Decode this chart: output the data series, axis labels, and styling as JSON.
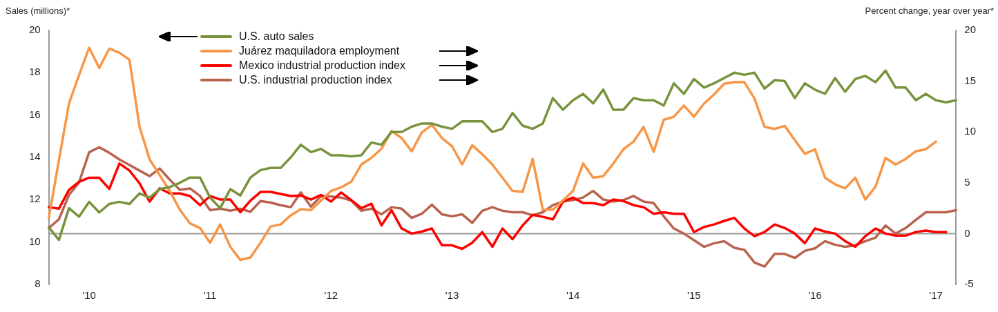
{
  "chart_data": {
    "type": "line",
    "ylabel": "Sales (millions)*",
    "y2label": "Percent change, year over year*",
    "categories": [
      null,
      null,
      null,
      null,
      "'10",
      null,
      null,
      null,
      null,
      null,
      null,
      null,
      null,
      null,
      null,
      null,
      "'11",
      null,
      null,
      null,
      null,
      null,
      null,
      null,
      null,
      null,
      null,
      null,
      "'12",
      null,
      null,
      null,
      null,
      null,
      null,
      null,
      null,
      null,
      null,
      null,
      "'13",
      null,
      null,
      null,
      null,
      null,
      null,
      null,
      null,
      null,
      null,
      null,
      "'14",
      null,
      null,
      null,
      null,
      null,
      null,
      null,
      null,
      null,
      null,
      null,
      "'15",
      null,
      null,
      null,
      null,
      null,
      null,
      null,
      null,
      null,
      null,
      null,
      "'16",
      null,
      null,
      null,
      null,
      null,
      null,
      null,
      null,
      null,
      null,
      null,
      "'17",
      null,
      null
    ],
    "ylim": [
      8,
      20
    ],
    "yticks": [
      8,
      10,
      12,
      14,
      16,
      18,
      20
    ],
    "y2lim": [
      -5,
      20
    ],
    "y2ticks": [
      -5,
      0,
      5,
      10,
      15,
      20
    ],
    "legend": "top",
    "grid": false,
    "ref_lines": [
      {
        "axis": "y2",
        "value": 0,
        "color": "#999999"
      }
    ],
    "series": [
      {
        "name": "U.S. auto sales",
        "color": "#77933c",
        "axis": "y",
        "values": [
          10.7,
          10.1,
          11.6,
          11.2,
          11.9,
          11.4,
          11.8,
          11.9,
          11.8,
          12.3,
          12.1,
          12.5,
          12.6,
          12.8,
          13.05,
          13.05,
          12.1,
          11.6,
          12.5,
          12.2,
          13.05,
          13.4,
          13.5,
          13.5,
          14.0,
          14.6,
          14.25,
          14.4,
          14.1,
          14.1,
          14.05,
          14.1,
          14.7,
          14.6,
          15.2,
          15.2,
          15.45,
          15.6,
          15.6,
          15.45,
          15.35,
          15.7,
          15.7,
          15.7,
          15.2,
          15.35,
          16.1,
          15.5,
          15.35,
          15.6,
          16.8,
          16.25,
          16.7,
          17.0,
          16.55,
          17.2,
          16.25,
          16.25,
          16.8,
          16.7,
          16.7,
          16.45,
          17.5,
          17.0,
          17.7,
          17.3,
          17.5,
          17.75,
          18.0,
          17.9,
          18.0,
          17.25,
          17.65,
          17.6,
          16.8,
          17.5,
          17.2,
          17.0,
          17.75,
          17.1,
          17.7,
          17.85,
          17.55,
          18.1,
          17.3,
          17.3,
          16.7,
          17.0,
          16.7,
          16.6,
          16.7
        ]
      },
      {
        "name": "Juárez maquiladora employment",
        "color": "#f79646",
        "axis": "y2",
        "values": [
          1.56,
          7.2,
          12.8,
          15.6,
          18.3,
          16.3,
          18.2,
          17.8,
          17.1,
          10.5,
          7.3,
          5.75,
          4.2,
          2.35,
          1.0,
          0.55,
          -0.9,
          0.9,
          -1.3,
          -2.6,
          -2.35,
          -0.9,
          0.7,
          0.9,
          1.8,
          2.4,
          2.3,
          3.25,
          4.2,
          4.55,
          5.1,
          6.8,
          7.45,
          8.35,
          10.1,
          9.4,
          8.1,
          9.95,
          10.7,
          9.4,
          8.6,
          6.8,
          8.7,
          7.8,
          6.8,
          5.5,
          4.2,
          4.1,
          7.35,
          2.35,
          2.35,
          3.25,
          4.2,
          6.9,
          5.5,
          5.65,
          6.9,
          8.3,
          9.05,
          10.5,
          8.05,
          11.2,
          11.5,
          12.6,
          11.5,
          12.8,
          13.7,
          14.75,
          14.9,
          14.9,
          13.3,
          10.5,
          10.3,
          10.6,
          9.2,
          7.85,
          8.3,
          5.5,
          4.85,
          4.45,
          5.5,
          3.35,
          4.6,
          7.45,
          6.8,
          7.35,
          8.1,
          8.3,
          9.05,
          null,
          null
        ]
      },
      {
        "name": "Mexico industrial production index",
        "color": "#ff0000",
        "axis": "y2",
        "values": [
          2.6,
          2.45,
          4.3,
          5.1,
          5.5,
          5.5,
          4.4,
          6.9,
          6.2,
          4.95,
          3.15,
          4.45,
          3.95,
          3.95,
          3.7,
          2.8,
          3.7,
          3.35,
          3.35,
          2.1,
          3.25,
          4.1,
          4.1,
          3.9,
          3.7,
          3.75,
          3.35,
          3.8,
          3.15,
          4.05,
          3.3,
          2.5,
          2.95,
          0.8,
          2.3,
          0.5,
          0.0,
          0.2,
          0.5,
          -1.15,
          -1.15,
          -1.5,
          -0.9,
          0.15,
          -1.3,
          0.5,
          -0.55,
          0.8,
          1.85,
          1.65,
          1.4,
          3.15,
          3.55,
          3.0,
          3.0,
          2.8,
          3.35,
          3.2,
          2.8,
          2.6,
          1.95,
          2.1,
          1.95,
          1.95,
          0.15,
          0.65,
          0.9,
          1.25,
          1.55,
          0.5,
          -0.25,
          0.15,
          0.9,
          0.55,
          0.0,
          -0.95,
          0.5,
          0.2,
          0.0,
          -0.75,
          -1.3,
          -0.25,
          0.5,
          0.0,
          -0.2,
          -0.2,
          0.15,
          0.3,
          0.15,
          0.15,
          null
        ]
      },
      {
        "name": "U.S. industrial production index",
        "color": "#b9634f",
        "axis": "y2",
        "values": [
          0.55,
          1.4,
          3.8,
          5.05,
          8.0,
          8.5,
          7.95,
          7.3,
          6.75,
          6.2,
          5.65,
          6.4,
          5.3,
          4.3,
          4.45,
          3.7,
          2.3,
          2.45,
          2.25,
          2.45,
          2.15,
          3.2,
          3.05,
          2.8,
          2.6,
          4.05,
          2.65,
          3.7,
          3.65,
          3.55,
          3.25,
          2.25,
          2.45,
          1.9,
          2.6,
          2.45,
          1.55,
          1.95,
          2.85,
          1.9,
          1.7,
          1.9,
          1.05,
          2.25,
          2.6,
          2.25,
          2.1,
          2.1,
          1.8,
          2.1,
          2.8,
          3.15,
          3.3,
          3.55,
          4.2,
          3.35,
          3.15,
          3.3,
          3.7,
          3.15,
          3.0,
          1.7,
          0.5,
          0.0,
          -0.65,
          -1.3,
          -0.95,
          -0.75,
          -1.4,
          -1.6,
          -2.85,
          -3.25,
          -2.0,
          -2.0,
          -2.4,
          -1.7,
          -1.45,
          -0.75,
          -1.1,
          -1.3,
          -1.15,
          -0.75,
          -0.4,
          0.8,
          0.0,
          0.55,
          1.35,
          2.1,
          2.1,
          2.1,
          2.3
        ]
      }
    ]
  }
}
